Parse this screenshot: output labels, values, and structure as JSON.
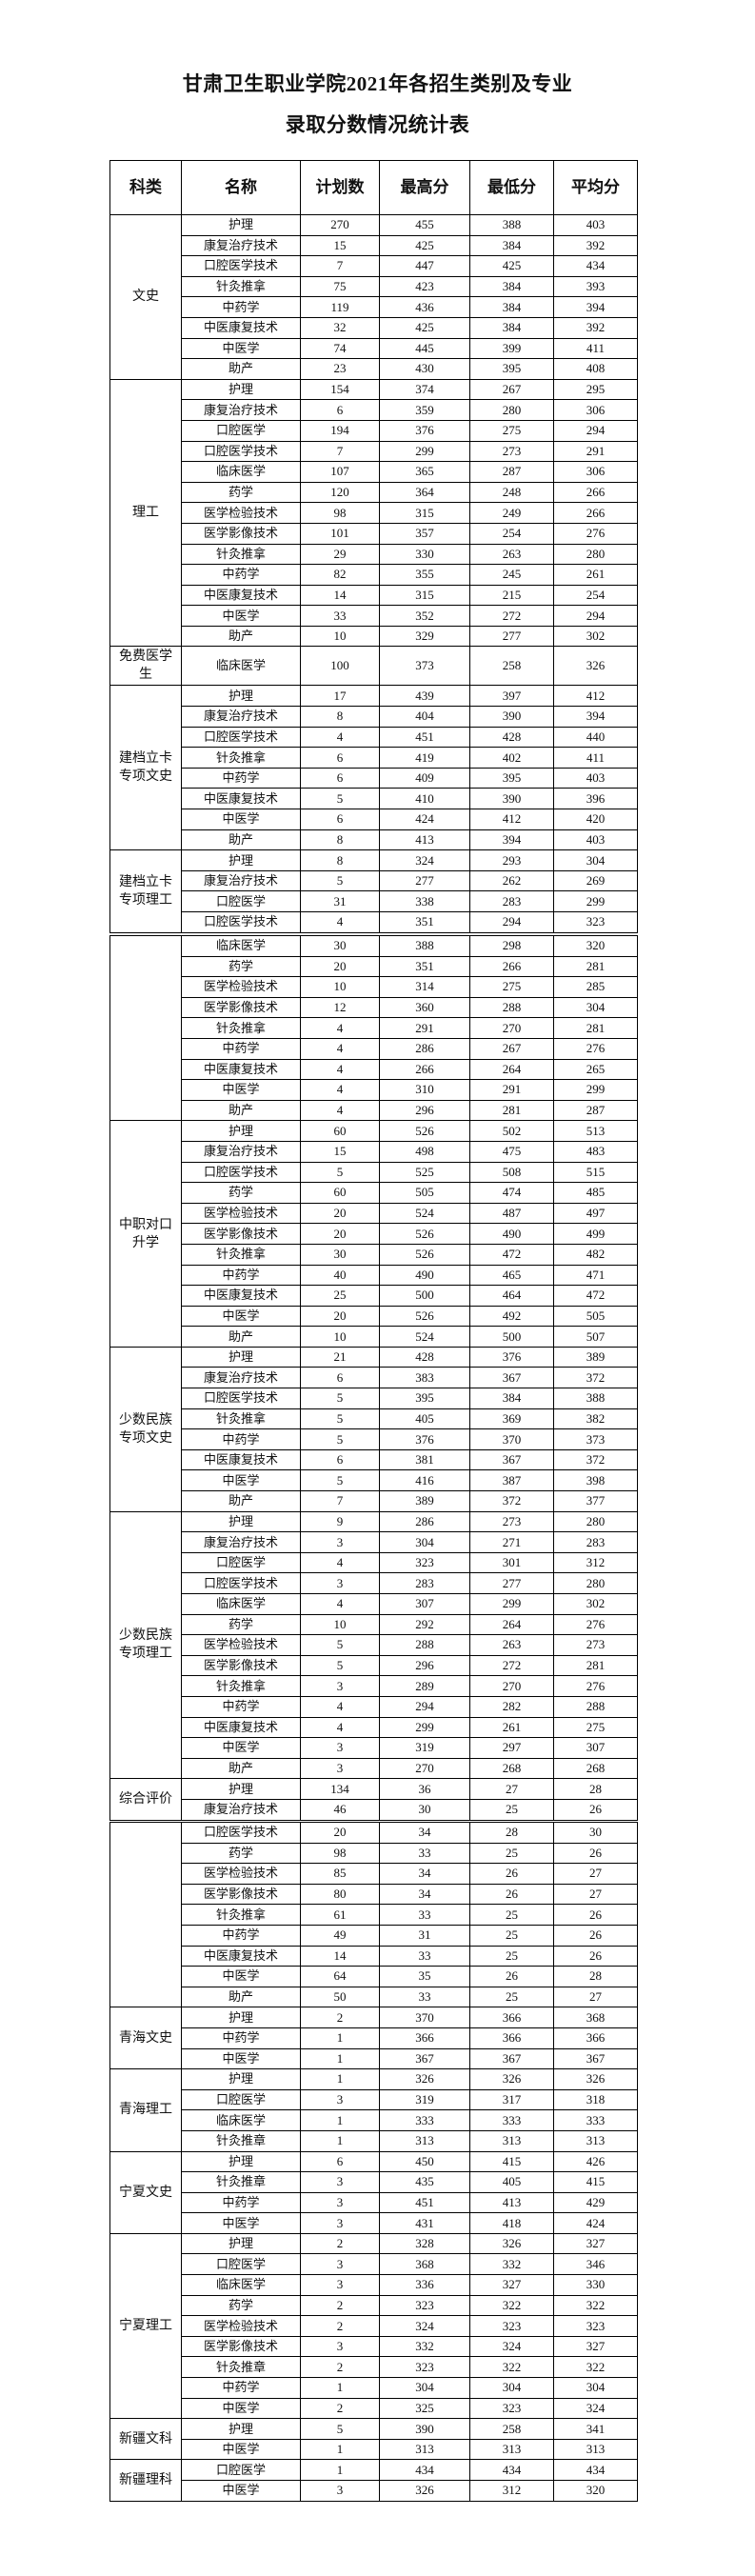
{
  "title": {
    "line1": "甘肃卫生职业学院2021年各招生类别及专业",
    "line2": "录取分数情况统计表"
  },
  "headers": [
    "科类",
    "名称",
    "计划数",
    "最高分",
    "最低分",
    "平均分"
  ],
  "segments": [
    {
      "groups": [
        {
          "category": "文史",
          "rows": [
            [
              "护理",
              "270",
              "455",
              "388",
              "403"
            ],
            [
              "康复治疗技术",
              "15",
              "425",
              "384",
              "392"
            ],
            [
              "口腔医学技术",
              "7",
              "447",
              "425",
              "434"
            ],
            [
              "针灸推拿",
              "75",
              "423",
              "384",
              "393"
            ],
            [
              "中药学",
              "119",
              "436",
              "384",
              "394"
            ],
            [
              "中医康复技术",
              "32",
              "425",
              "384",
              "392"
            ],
            [
              "中医学",
              "74",
              "445",
              "399",
              "411"
            ],
            [
              "助产",
              "23",
              "430",
              "395",
              "408"
            ]
          ]
        },
        {
          "category": "理工",
          "rows": [
            [
              "护理",
              "154",
              "374",
              "267",
              "295"
            ],
            [
              "康复治疗技术",
              "6",
              "359",
              "280",
              "306"
            ],
            [
              "口腔医学",
              "194",
              "376",
              "275",
              "294"
            ],
            [
              "口腔医学技术",
              "7",
              "299",
              "273",
              "291"
            ],
            [
              "临床医学",
              "107",
              "365",
              "287",
              "306"
            ],
            [
              "药学",
              "120",
              "364",
              "248",
              "266"
            ],
            [
              "医学检验技术",
              "98",
              "315",
              "249",
              "266"
            ],
            [
              "医学影像技术",
              "101",
              "357",
              "254",
              "276"
            ],
            [
              "针灸推拿",
              "29",
              "330",
              "263",
              "280"
            ],
            [
              "中药学",
              "82",
              "355",
              "245",
              "261"
            ],
            [
              "中医康复技术",
              "14",
              "315",
              "215",
              "254"
            ],
            [
              "中医学",
              "33",
              "352",
              "272",
              "294"
            ],
            [
              "助产",
              "10",
              "329",
              "277",
              "302"
            ]
          ]
        },
        {
          "category": "免费医学生",
          "tall": true,
          "rows": [
            [
              "临床医学",
              "100",
              "373",
              "258",
              "326"
            ]
          ]
        },
        {
          "category": "建档立卡专项文史",
          "rows": [
            [
              "护理",
              "17",
              "439",
              "397",
              "412"
            ],
            [
              "康复治疗技术",
              "8",
              "404",
              "390",
              "394"
            ],
            [
              "口腔医学技术",
              "4",
              "451",
              "428",
              "440"
            ],
            [
              "针灸推拿",
              "6",
              "419",
              "402",
              "411"
            ],
            [
              "中药学",
              "6",
              "409",
              "395",
              "403"
            ],
            [
              "中医康复技术",
              "5",
              "410",
              "390",
              "396"
            ],
            [
              "中医学",
              "6",
              "424",
              "412",
              "420"
            ],
            [
              "助产",
              "8",
              "413",
              "394",
              "403"
            ]
          ]
        },
        {
          "category": "建档立卡专项理工",
          "rows": [
            [
              "护理",
              "8",
              "324",
              "293",
              "304"
            ],
            [
              "康复治疗技术",
              "5",
              "277",
              "262",
              "269"
            ],
            [
              "口腔医学",
              "31",
              "338",
              "283",
              "299"
            ],
            [
              "口腔医学技术",
              "4",
              "351",
              "294",
              "323"
            ]
          ]
        }
      ]
    },
    {
      "groups": [
        {
          "category": "",
          "rows": [
            [
              "临床医学",
              "30",
              "388",
              "298",
              "320"
            ],
            [
              "药学",
              "20",
              "351",
              "266",
              "281"
            ],
            [
              "医学检验技术",
              "10",
              "314",
              "275",
              "285"
            ],
            [
              "医学影像技术",
              "12",
              "360",
              "288",
              "304"
            ],
            [
              "针灸推拿",
              "4",
              "291",
              "270",
              "281"
            ],
            [
              "中药学",
              "4",
              "286",
              "267",
              "276"
            ],
            [
              "中医康复技术",
              "4",
              "266",
              "264",
              "265"
            ],
            [
              "中医学",
              "4",
              "310",
              "291",
              "299"
            ],
            [
              "助产",
              "4",
              "296",
              "281",
              "287"
            ]
          ]
        },
        {
          "category": "中职对口升学",
          "rows": [
            [
              "护理",
              "60",
              "526",
              "502",
              "513"
            ],
            [
              "康复治疗技术",
              "15",
              "498",
              "475",
              "483"
            ],
            [
              "口腔医学技术",
              "5",
              "525",
              "508",
              "515"
            ],
            [
              "药学",
              "60",
              "505",
              "474",
              "485"
            ],
            [
              "医学检验技术",
              "20",
              "524",
              "487",
              "497"
            ],
            [
              "医学影像技术",
              "20",
              "526",
              "490",
              "499"
            ],
            [
              "针灸推拿",
              "30",
              "526",
              "472",
              "482"
            ],
            [
              "中药学",
              "40",
              "490",
              "465",
              "471"
            ],
            [
              "中医康复技术",
              "25",
              "500",
              "464",
              "472"
            ],
            [
              "中医学",
              "20",
              "526",
              "492",
              "505"
            ],
            [
              "助产",
              "10",
              "524",
              "500",
              "507"
            ]
          ]
        },
        {
          "category": "少数民族专项文史",
          "rows": [
            [
              "护理",
              "21",
              "428",
              "376",
              "389"
            ],
            [
              "康复治疗技术",
              "6",
              "383",
              "367",
              "372"
            ],
            [
              "口腔医学技术",
              "5",
              "395",
              "384",
              "388"
            ],
            [
              "针灸推拿",
              "5",
              "405",
              "369",
              "382"
            ],
            [
              "中药学",
              "5",
              "376",
              "370",
              "373"
            ],
            [
              "中医康复技术",
              "6",
              "381",
              "367",
              "372"
            ],
            [
              "中医学",
              "5",
              "416",
              "387",
              "398"
            ],
            [
              "助产",
              "7",
              "389",
              "372",
              "377"
            ]
          ]
        },
        {
          "category": "少数民族专项理工",
          "rows": [
            [
              "护理",
              "9",
              "286",
              "273",
              "280"
            ],
            [
              "康复治疗技术",
              "3",
              "304",
              "271",
              "283"
            ],
            [
              "口腔医学",
              "4",
              "323",
              "301",
              "312"
            ],
            [
              "口腔医学技术",
              "3",
              "283",
              "277",
              "280"
            ],
            [
              "临床医学",
              "4",
              "307",
              "299",
              "302"
            ],
            [
              "药学",
              "10",
              "292",
              "264",
              "276"
            ],
            [
              "医学检验技术",
              "5",
              "288",
              "263",
              "273"
            ],
            [
              "医学影像技术",
              "5",
              "296",
              "272",
              "281"
            ],
            [
              "针灸推拿",
              "3",
              "289",
              "270",
              "276"
            ],
            [
              "中药学",
              "4",
              "294",
              "282",
              "288"
            ],
            [
              "中医康复技术",
              "4",
              "299",
              "261",
              "275"
            ],
            [
              "中医学",
              "3",
              "319",
              "297",
              "307"
            ],
            [
              "助产",
              "3",
              "270",
              "268",
              "268"
            ]
          ]
        },
        {
          "category": "综合评价",
          "rows": [
            [
              "护理",
              "134",
              "36",
              "27",
              "28"
            ],
            [
              "康复治疗技术",
              "46",
              "30",
              "25",
              "26"
            ]
          ]
        }
      ]
    },
    {
      "groups": [
        {
          "category": "",
          "rows": [
            [
              "口腔医学技术",
              "20",
              "34",
              "28",
              "30"
            ],
            [
              "药学",
              "98",
              "33",
              "25",
              "26"
            ],
            [
              "医学检验技术",
              "85",
              "34",
              "26",
              "27"
            ],
            [
              "医学影像技术",
              "80",
              "34",
              "26",
              "27"
            ],
            [
              "针灸推拿",
              "61",
              "33",
              "25",
              "26"
            ],
            [
              "中药学",
              "49",
              "31",
              "25",
              "26"
            ],
            [
              "中医康复技术",
              "14",
              "33",
              "25",
              "26"
            ],
            [
              "中医学",
              "64",
              "35",
              "26",
              "28"
            ],
            [
              "助产",
              "50",
              "33",
              "25",
              "27"
            ]
          ]
        },
        {
          "category": "青海文史",
          "rows": [
            [
              "护理",
              "2",
              "370",
              "366",
              "368"
            ],
            [
              "中药学",
              "1",
              "366",
              "366",
              "366"
            ],
            [
              "中医学",
              "1",
              "367",
              "367",
              "367"
            ]
          ]
        },
        {
          "category": "青海理工",
          "rows": [
            [
              "护理",
              "1",
              "326",
              "326",
              "326"
            ],
            [
              "口腔医学",
              "3",
              "319",
              "317",
              "318"
            ],
            [
              "临床医学",
              "1",
              "333",
              "333",
              "333"
            ],
            [
              "针灸推章",
              "1",
              "313",
              "313",
              "313"
            ]
          ]
        },
        {
          "category": "宁夏文史",
          "rows": [
            [
              "护理",
              "6",
              "450",
              "415",
              "426"
            ],
            [
              "针灸推章",
              "3",
              "435",
              "405",
              "415"
            ],
            [
              "中药学",
              "3",
              "451",
              "413",
              "429"
            ],
            [
              "中医学",
              "3",
              "431",
              "418",
              "424"
            ]
          ]
        },
        {
          "category": "宁夏理工",
          "rows": [
            [
              "护理",
              "2",
              "328",
              "326",
              "327"
            ],
            [
              "口腔医学",
              "3",
              "368",
              "332",
              "346"
            ],
            [
              "临床医学",
              "3",
              "336",
              "327",
              "330"
            ],
            [
              "药学",
              "2",
              "323",
              "322",
              "322"
            ],
            [
              "医学检验技术",
              "2",
              "324",
              "323",
              "323"
            ],
            [
              "医学影像技术",
              "3",
              "332",
              "324",
              "327"
            ],
            [
              "针灸推章",
              "2",
              "323",
              "322",
              "322"
            ],
            [
              "中药学",
              "1",
              "304",
              "304",
              "304"
            ],
            [
              "中医学",
              "2",
              "325",
              "323",
              "324"
            ]
          ]
        },
        {
          "category": "新疆文科",
          "rows": [
            [
              "护理",
              "5",
              "390",
              "258",
              "341"
            ],
            [
              "中医学",
              "1",
              "313",
              "313",
              "313"
            ]
          ]
        },
        {
          "category": "新疆理科",
          "rows": [
            [
              "口腔医学",
              "1",
              "434",
              "434",
              "434"
            ],
            [
              "中医学",
              "3",
              "326",
              "312",
              "320"
            ]
          ]
        }
      ]
    }
  ]
}
